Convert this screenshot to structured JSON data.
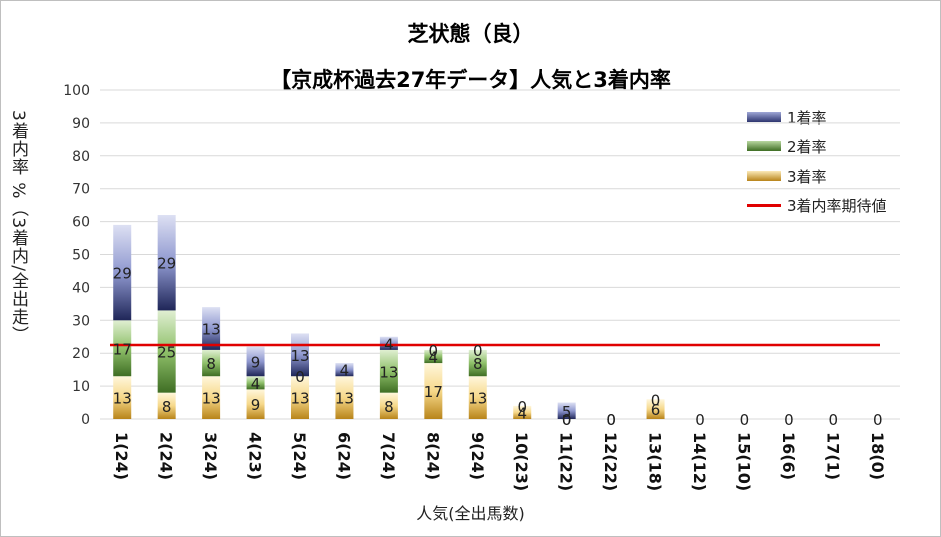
{
  "chart_data": {
    "type": "bar",
    "title": "芝状態（良）",
    "subtitle": "【京成杯過去27年データ】人気と3着内率",
    "xlabel": "人気(全出馬数)",
    "ylabel": "3着内率 %（3着内/全出走）",
    "ylim": [
      0,
      100
    ],
    "yticks": [
      "0",
      "10",
      "20",
      "30",
      "40",
      "50",
      "60",
      "70",
      "80",
      "90",
      "100"
    ],
    "categories": [
      "1(24)",
      "2(24)",
      "3(24)",
      "4(23)",
      "5(24)",
      "6(24)",
      "7(24)",
      "8(24)",
      "9(24)",
      "10(23)",
      "11(22)",
      "12(22)",
      "13(18)",
      "14(12)",
      "15(10)",
      "16(6)",
      "17(1)",
      "18(0)"
    ],
    "series": [
      {
        "name": "3着率",
        "values": [
          13,
          8,
          13,
          9,
          13,
          13,
          8,
          17,
          13,
          4,
          0,
          0,
          6,
          0,
          0,
          0,
          0,
          0
        ],
        "labels": [
          "13",
          "8",
          "13",
          "9",
          "13",
          "13",
          "8",
          "17",
          "13",
          "4",
          "0",
          "0",
          "6",
          "",
          "",
          "",
          "",
          ""
        ]
      },
      {
        "name": "2着率",
        "values": [
          17,
          25,
          8,
          4,
          0,
          0,
          13,
          4,
          8,
          0,
          0,
          0,
          0,
          0,
          0,
          0,
          0,
          0
        ],
        "labels": [
          "17",
          "25",
          "8",
          "4",
          "0",
          "",
          "13",
          "4",
          "8",
          "",
          "0",
          "",
          "",
          "",
          "",
          "",
          "",
          ""
        ]
      },
      {
        "name": "1着率",
        "values": [
          29,
          29,
          13,
          9,
          13,
          4,
          4,
          0,
          0,
          0,
          5,
          0,
          0,
          0,
          0,
          0,
          0,
          0
        ],
        "labels": [
          "29",
          "29",
          "13",
          "9",
          "13",
          "4",
          "4",
          "0",
          "0",
          "0",
          "5",
          "0",
          "0",
          "0",
          "0",
          "0",
          "0",
          "0"
        ]
      }
    ],
    "expected_line": {
      "name": "3着内率期待値",
      "value": 22.5
    },
    "legend_position": "top-right",
    "grid": true
  },
  "colors": {
    "first": "#3f4a94",
    "second": "#5c8a3a",
    "third": "#c99a2e",
    "expected": "#e00000",
    "grid": "#d9d9d9"
  }
}
